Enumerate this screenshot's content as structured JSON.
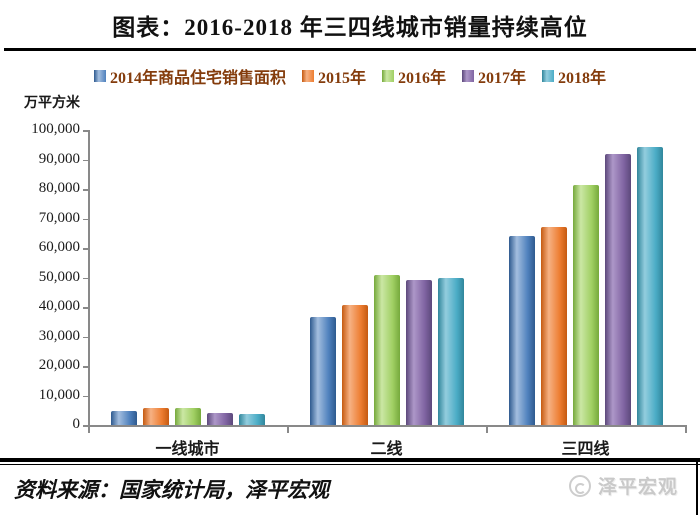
{
  "title": "图表：2016-2018 年三四线城市销量持续高位",
  "chart_data": {
    "type": "bar",
    "title": "图表：2016-2018 年三四线城市销量持续高位",
    "unit_label": "万平方米",
    "categories": [
      "一线城市",
      "二线",
      "三四线"
    ],
    "series": [
      {
        "name": "2014年商品住宅销售面积",
        "color": "#4F81BD",
        "light": "#A3BEDF",
        "dark": "#2E5A8F",
        "values": [
          4800,
          36500,
          64000
        ]
      },
      {
        "name": "2015年",
        "color": "#ED7D31",
        "light": "#F6B183",
        "dark": "#C55A11",
        "values": [
          5700,
          40600,
          67000
        ]
      },
      {
        "name": "2016年",
        "color": "#A0CF63",
        "light": "#CBE7A4",
        "dark": "#76A93C",
        "values": [
          5600,
          50800,
          81500
        ]
      },
      {
        "name": "2017年",
        "color": "#8064A2",
        "light": "#AD97C8",
        "dark": "#5C487B",
        "values": [
          4200,
          49200,
          91900
        ]
      },
      {
        "name": "2018年",
        "color": "#4BACC6",
        "light": "#93CDDE",
        "dark": "#31869B",
        "values": [
          3600,
          49700,
          94400
        ]
      }
    ],
    "ylim": [
      0,
      100000
    ],
    "ytick_step": 10000,
    "ytick_labels": [
      "0",
      "10,000",
      "20,000",
      "30,000",
      "40,000",
      "50,000",
      "60,000",
      "70,000",
      "80,000",
      "90,000",
      "100,000"
    ],
    "legend_position": "top",
    "grid": false,
    "legend_text_color": "#843C0C",
    "axis_color": "#898989"
  },
  "source": {
    "text": "资料来源：国家统计局，泽平宏观"
  },
  "watermark": {
    "text": "泽平宏观"
  }
}
